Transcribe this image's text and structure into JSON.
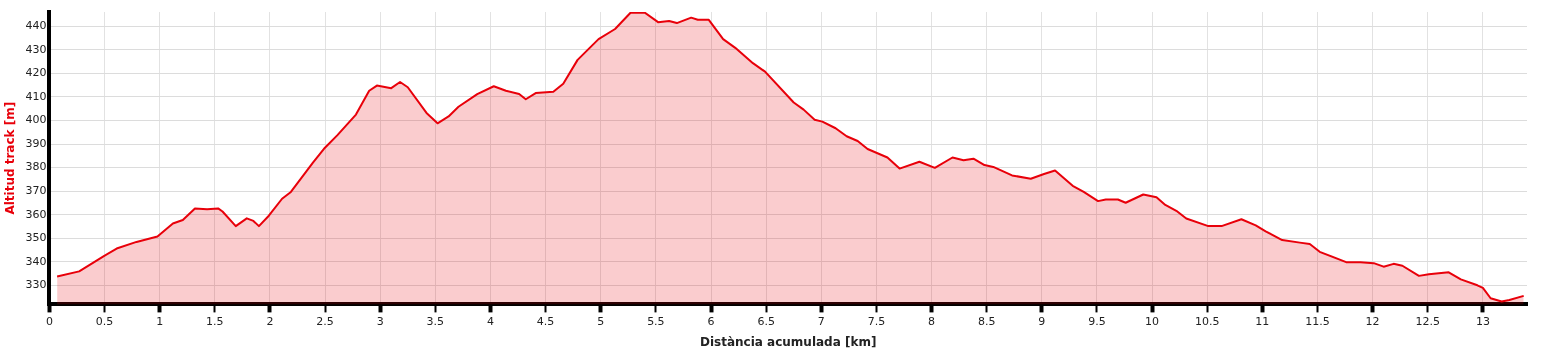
{
  "chart_data": {
    "type": "area",
    "xlabel": "Distància acumulada [km]",
    "ylabel": "Altitud track [m]",
    "grid": true,
    "legend": false,
    "marker": "none",
    "line_style": "solid",
    "xlim": [
      0,
      13.4
    ],
    "xticks": [
      0,
      0.5,
      1,
      1.5,
      2,
      2.5,
      3,
      3.5,
      4,
      4.5,
      5,
      5.5,
      6,
      6.5,
      7,
      7.5,
      8,
      8.5,
      9,
      9.5,
      10,
      10.5,
      11,
      11.5,
      12,
      12.5,
      13
    ],
    "ylim": [
      322,
      446
    ],
    "yticks": [
      330,
      340,
      350,
      360,
      370,
      380,
      390,
      400,
      410,
      420,
      430,
      440
    ],
    "x": [
      0.07,
      0.27,
      0.49,
      0.61,
      0.79,
      0.98,
      1.12,
      1.21,
      1.32,
      1.43,
      1.53,
      1.57,
      1.69,
      1.79,
      1.85,
      1.9,
      1.99,
      2.11,
      2.19,
      2.39,
      2.49,
      2.61,
      2.78,
      2.9,
      2.97,
      3.1,
      3.18,
      3.25,
      3.42,
      3.52,
      3.62,
      3.71,
      3.88,
      4.03,
      4.14,
      4.26,
      4.32,
      4.41,
      4.57,
      4.66,
      4.79,
      4.98,
      5.13,
      5.27,
      5.4,
      5.52,
      5.62,
      5.69,
      5.82,
      5.88,
      5.98,
      6.11,
      6.22,
      6.38,
      6.49,
      6.75,
      6.84,
      6.94,
      7.01,
      7.13,
      7.23,
      7.33,
      7.42,
      7.6,
      7.71,
      7.89,
      8.03,
      8.19,
      8.29,
      8.38,
      8.48,
      8.56,
      8.73,
      8.9,
      9.02,
      9.12,
      9.28,
      9.38,
      9.51,
      9.58,
      9.69,
      9.76,
      9.92,
      10.04,
      10.12,
      10.22,
      10.31,
      10.51,
      10.63,
      10.81,
      10.94,
      11.03,
      11.18,
      11.34,
      11.43,
      11.52,
      11.76,
      11.89,
      12.01,
      12.1,
      12.19,
      12.27,
      12.42,
      12.51,
      12.69,
      12.8,
      12.95,
      13.0,
      13.07,
      13.17,
      13.24,
      13.37
    ],
    "series": [
      {
        "color": "#e8000a",
        "values": [
          333.8,
          336,
          342.4,
          345.7,
          348.5,
          350.8,
          356.3,
          357.8,
          362.7,
          362.4,
          362.7,
          361.4,
          355.2,
          358.5,
          357.4,
          355.2,
          359.6,
          366.8,
          369.7,
          382.1,
          388,
          393.7,
          402.5,
          412.6,
          414.8,
          413.7,
          416.3,
          414.1,
          403.2,
          398.8,
          401.7,
          405.8,
          411.2,
          414.5,
          412.6,
          411.2,
          409,
          411.6,
          412.2,
          415.6,
          425.7,
          434.5,
          438.8,
          445.7,
          445.7,
          441.7,
          442.2,
          441.3,
          443.6,
          442.7,
          442.7,
          434.5,
          430.8,
          424.3,
          420.7,
          407.6,
          404.6,
          400.3,
          399.5,
          396.7,
          393.3,
          391.3,
          387.9,
          384.3,
          379.6,
          382.5,
          379.9,
          384.3,
          383.1,
          383.8,
          381.1,
          380.3,
          376.7,
          375.3,
          377.3,
          378.8,
          372.3,
          369.7,
          365.8,
          366.5,
          366.5,
          365.1,
          368.6,
          367.4,
          364.2,
          361.7,
          358.4,
          355.2,
          355.2,
          358.1,
          355.5,
          353,
          349.3,
          348.2,
          347.6,
          344.3,
          339.9,
          339.9,
          339.5,
          338,
          339.2,
          338.4,
          334.1,
          334.8,
          335.6,
          332.6,
          330.1,
          329,
          324.6,
          323.2,
          323.9,
          325.6
        ]
      }
    ]
  }
}
